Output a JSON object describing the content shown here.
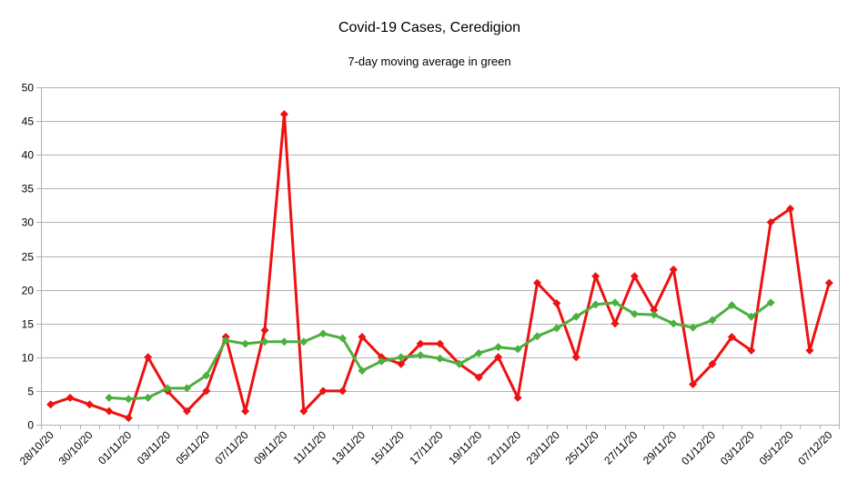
{
  "chart_data": {
    "type": "line",
    "title": "Covid-19 Cases, Ceredigion",
    "subtitle": "7-day moving average in green",
    "xlabel": "",
    "ylabel": "",
    "ylim": [
      0,
      50
    ],
    "yticks": [
      0,
      5,
      10,
      15,
      20,
      25,
      30,
      35,
      40,
      45,
      50
    ],
    "grid": true,
    "x_tick_labels": [
      "28/10/20",
      "30/10/20",
      "01/11/20",
      "03/11/20",
      "05/11/20",
      "07/11/20",
      "09/11/20",
      "11/11/20",
      "13/11/20",
      "15/11/20",
      "17/11/20",
      "19/11/20",
      "21/11/20",
      "23/11/20",
      "25/11/20",
      "27/11/20",
      "29/11/20",
      "01/12/20",
      "03/12/20",
      "05/12/20",
      "07/12/20"
    ],
    "categories": [
      "28/10/20",
      "29/10/20",
      "30/10/20",
      "31/10/20",
      "01/11/20",
      "02/11/20",
      "03/11/20",
      "04/11/20",
      "05/11/20",
      "06/11/20",
      "07/11/20",
      "08/11/20",
      "09/11/20",
      "10/11/20",
      "11/11/20",
      "12/11/20",
      "13/11/20",
      "14/11/20",
      "15/11/20",
      "16/11/20",
      "17/11/20",
      "18/11/20",
      "19/11/20",
      "20/11/20",
      "21/11/20",
      "22/11/20",
      "23/11/20",
      "24/11/20",
      "25/11/20",
      "26/11/20",
      "27/11/20",
      "28/11/20",
      "29/11/20",
      "30/11/20",
      "01/12/20",
      "02/12/20",
      "03/12/20",
      "04/12/20",
      "05/12/20",
      "06/12/20",
      "07/12/20"
    ],
    "series": [
      {
        "color": "#ee1111",
        "values": [
          3,
          4,
          3,
          2,
          1,
          10,
          5,
          2,
          5,
          13,
          2,
          14,
          46,
          2,
          5,
          5,
          13,
          10,
          9,
          12,
          12,
          9,
          7,
          10,
          4,
          21,
          18,
          10,
          22,
          15,
          22,
          17,
          23,
          6,
          9,
          13,
          11,
          30,
          32,
          11,
          21
        ]
      },
      {
        "color": "#4cb03f",
        "values": [
          null,
          null,
          null,
          4.0,
          3.8,
          4.0,
          5.4,
          5.4,
          7.3,
          12.5,
          12.0,
          12.3,
          12.3,
          12.3,
          13.5,
          12.8,
          8.0,
          9.4,
          10.0,
          10.3,
          9.8,
          9.0,
          10.6,
          11.5,
          11.2,
          13.1,
          14.3,
          16.0,
          17.8,
          18.1,
          16.4,
          16.3,
          15.0,
          14.4,
          15.5,
          17.7,
          16.0,
          18.1,
          null,
          null,
          null
        ]
      }
    ]
  }
}
